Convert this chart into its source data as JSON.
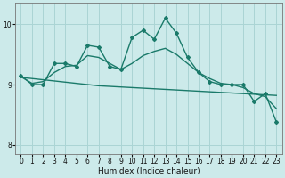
{
  "xlabel": "Humidex (Indice chaleur)",
  "background_color": "#cceaea",
  "grid_color": "#aad4d4",
  "line_color": "#1a7a6a",
  "x": [
    0,
    1,
    2,
    3,
    4,
    5,
    6,
    7,
    8,
    9,
    10,
    11,
    12,
    13,
    14,
    15,
    16,
    17,
    18,
    19,
    20,
    21,
    22,
    23
  ],
  "y_wavy": [
    9.15,
    9.0,
    9.0,
    9.35,
    9.35,
    9.3,
    9.65,
    9.62,
    9.3,
    9.25,
    9.78,
    9.9,
    9.75,
    10.1,
    9.85,
    9.45,
    9.2,
    9.05,
    9.0,
    9.0,
    9.0,
    8.72,
    8.85,
    8.38
  ],
  "y_smooth": [
    9.13,
    9.02,
    9.05,
    9.2,
    9.3,
    9.32,
    9.48,
    9.45,
    9.35,
    9.25,
    9.35,
    9.48,
    9.55,
    9.6,
    9.5,
    9.35,
    9.2,
    9.1,
    9.02,
    9.0,
    8.95,
    8.85,
    8.8,
    8.6
  ],
  "y_linear": [
    9.12,
    9.1,
    9.08,
    9.06,
    9.04,
    9.02,
    9.0,
    8.98,
    8.97,
    8.96,
    8.95,
    8.94,
    8.93,
    8.92,
    8.91,
    8.9,
    8.89,
    8.88,
    8.87,
    8.86,
    8.85,
    8.84,
    8.83,
    8.82
  ],
  "ylim": [
    7.85,
    10.35
  ],
  "yticks": [
    8,
    9,
    10
  ],
  "xticks": [
    0,
    1,
    2,
    3,
    4,
    5,
    6,
    7,
    8,
    9,
    10,
    11,
    12,
    13,
    14,
    15,
    16,
    17,
    18,
    19,
    20,
    21,
    22,
    23
  ],
  "xlim": [
    -0.5,
    23.5
  ]
}
